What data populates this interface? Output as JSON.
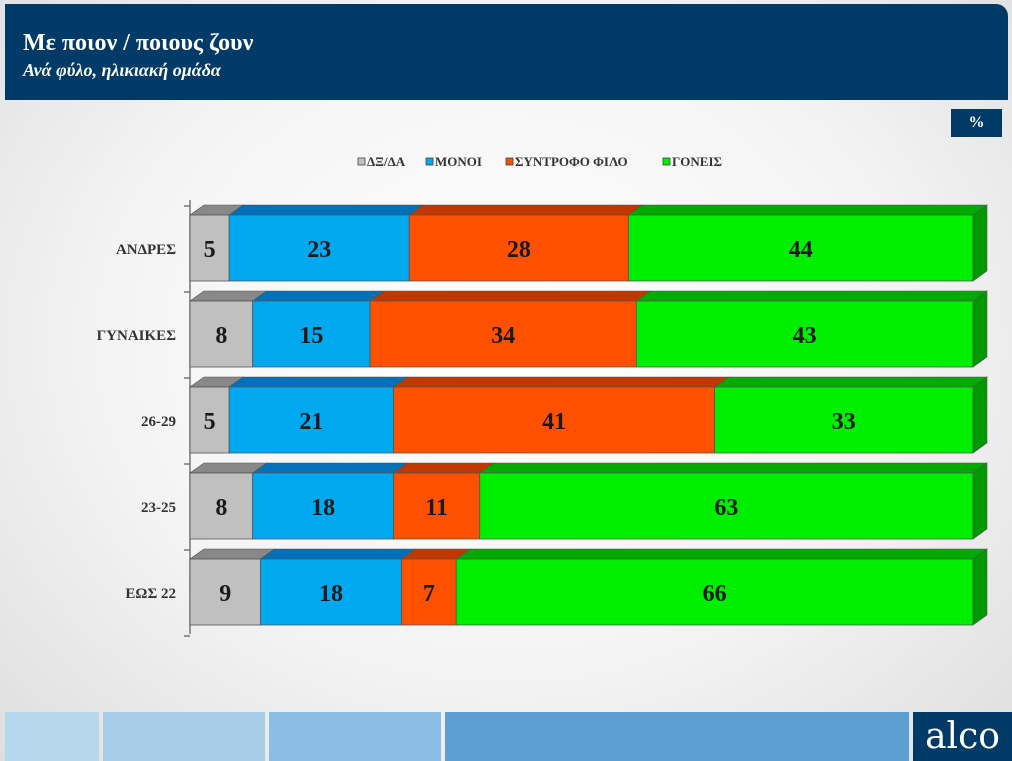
{
  "header": {
    "title": "Με ποιον / ποιους ζουν",
    "subtitle": "Ανά φύλο, ηλικιακή ομάδα"
  },
  "unit_badge": "%",
  "logo": "alco",
  "colors": {
    "header_bg": "#003a66",
    "series": [
      "#c0c0c0",
      "#00a8f0",
      "#ff5000",
      "#00ee00"
    ],
    "series_top": [
      "#888888",
      "#0070b8",
      "#c03800",
      "#00aa00"
    ],
    "series_side": [
      "#8a8a8a",
      "#0070b8",
      "#c03800",
      "#009900"
    ]
  },
  "chart_data": {
    "type": "bar",
    "orientation": "horizontal",
    "stacked": true,
    "categories": [
      "ΑΝΔΡΕΣ",
      "ΓΥΝΑΙΚΕΣ",
      "26-29",
      "23-25",
      "ΕΩΣ 22"
    ],
    "series": [
      {
        "name": "ΔΞ/ΔΑ",
        "values": [
          5,
          8,
          5,
          8,
          9
        ]
      },
      {
        "name": "ΜΟΝΟΙ",
        "values": [
          23,
          15,
          21,
          18,
          18
        ]
      },
      {
        "name": "ΣΥΝΤΡΟΦΟ ΦΙΛΟ",
        "values": [
          28,
          34,
          41,
          11,
          7
        ]
      },
      {
        "name": "ΓΟΝΕΙΣ",
        "values": [
          44,
          43,
          33,
          63,
          66
        ]
      }
    ],
    "xlim": [
      0,
      100
    ],
    "legend": "top",
    "grid": false,
    "data_labels": true
  }
}
